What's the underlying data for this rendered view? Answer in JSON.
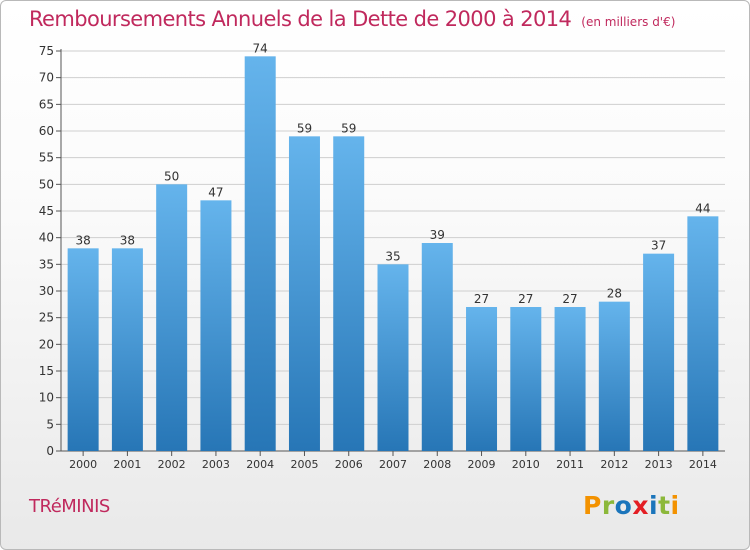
{
  "title": "Remboursements Annuels de la Dette de 2000 à 2014",
  "unit_note": "(en milliers d'€)",
  "commune": "TRéMINIS",
  "logo": {
    "letters": [
      "P",
      "r",
      "o",
      "x",
      "i",
      "t",
      "i"
    ],
    "colors": [
      "#f39200",
      "#8cb83a",
      "#1b75bb",
      "#e31e24",
      "#1b75bb",
      "#8cb83a",
      "#f39200"
    ]
  },
  "colors": {
    "title": "#c0295d",
    "bar_top": "#65b4ec",
    "bar_bottom": "#2776b6",
    "grid": "#cfcfcf",
    "axis_text": "#333333"
  },
  "chart_data": {
    "type": "bar",
    "categories": [
      "2000",
      "2001",
      "2002",
      "2003",
      "2004",
      "2005",
      "2006",
      "2007",
      "2008",
      "2009",
      "2010",
      "2011",
      "2012",
      "2013",
      "2014"
    ],
    "values": [
      38,
      38,
      50,
      47,
      74,
      59,
      59,
      35,
      39,
      27,
      27,
      27,
      28,
      37,
      44
    ],
    "yticks": [
      0,
      5,
      10,
      15,
      20,
      25,
      30,
      35,
      40,
      45,
      50,
      55,
      60,
      65,
      70,
      75
    ],
    "ylim": [
      0,
      75
    ],
    "grid": true,
    "data_labels": true
  }
}
